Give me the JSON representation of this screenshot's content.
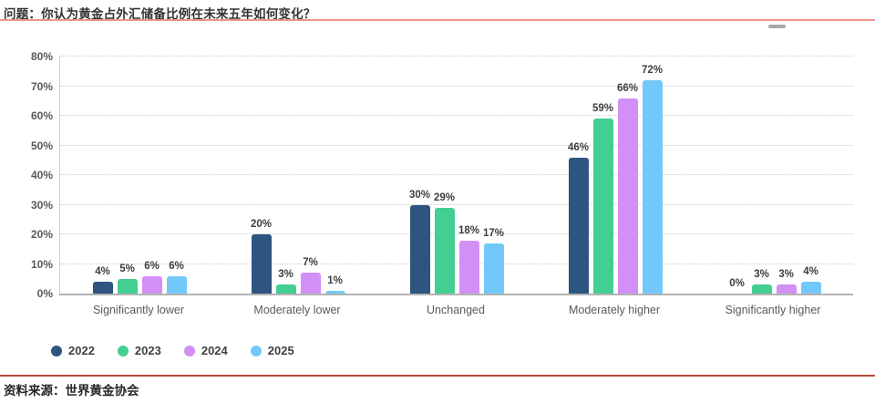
{
  "header": {
    "title": "问题：你认为黄金占外汇储备比例在未来五年如何变化？"
  },
  "footer": {
    "source": "资料来源：世界黄金协会"
  },
  "colors": {
    "title_rule": "#f0948b",
    "footer_rule": "#b64a3a",
    "axis_baseline": "#b3b3b3",
    "gridline": "#cccccc",
    "label_text": "#3d3d3d",
    "tick_text": "#595959"
  },
  "chart_data": {
    "type": "bar",
    "title": "问题：你认为黄金占外汇储备比例在未来五年如何变化？",
    "categories": [
      "Significantly lower",
      "Moderately lower",
      "Unchanged",
      "Moderately higher",
      "Significantly higher"
    ],
    "series": [
      {
        "name": "2022",
        "color": "#2d5580",
        "values": [
          4,
          20,
          30,
          46,
          0
        ]
      },
      {
        "name": "2023",
        "color": "#43ce92",
        "values": [
          5,
          3,
          29,
          59,
          3
        ]
      },
      {
        "name": "2024",
        "color": "#d28ff6",
        "values": [
          6,
          7,
          18,
          66,
          3
        ]
      },
      {
        "name": "2025",
        "color": "#73c8fa",
        "values": [
          6,
          1,
          17,
          72,
          4
        ]
      }
    ],
    "xlabel": "",
    "ylabel": "",
    "ylim": [
      0,
      80
    ],
    "y_tick_step": 10,
    "y_tick_suffix": "%",
    "value_label_suffix": "%",
    "grid": "horizontal-dotted",
    "legend_position": "bottom-left"
  }
}
